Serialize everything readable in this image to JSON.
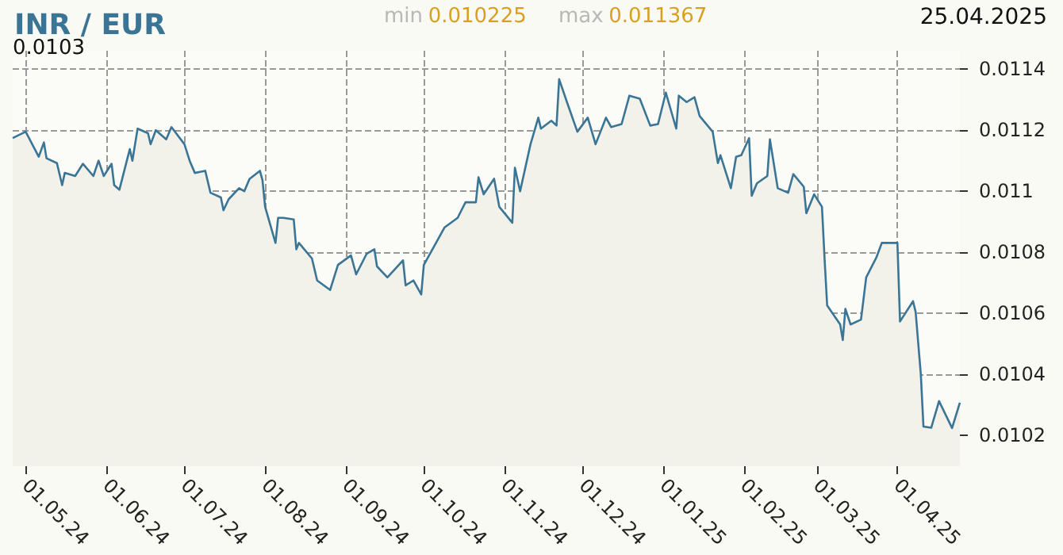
{
  "chart_data": {
    "type": "area",
    "title": "INR / EUR",
    "annotations": [
      "min 0.010225",
      "max 0.011367",
      "25.04.2025",
      "0.0103"
    ],
    "x": [
      "2024-04-26",
      "2024-05-01",
      "2024-05-06",
      "2024-05-08",
      "2024-05-09",
      "2024-05-13",
      "2024-05-15",
      "2024-05-16",
      "2024-05-20",
      "2024-05-23",
      "2024-05-27",
      "2024-05-29",
      "2024-05-31",
      "2024-06-03",
      "2024-06-04",
      "2024-06-06",
      "2024-06-10",
      "2024-06-11",
      "2024-06-13",
      "2024-06-17",
      "2024-06-18",
      "2024-06-20",
      "2024-06-24",
      "2024-06-26",
      "2024-07-01",
      "2024-07-03",
      "2024-07-05",
      "2024-07-09",
      "2024-07-11",
      "2024-07-15",
      "2024-07-16",
      "2024-07-18",
      "2024-07-22",
      "2024-07-24",
      "2024-07-26",
      "2024-07-30",
      "2024-07-31",
      "2024-08-01",
      "2024-08-05",
      "2024-08-06",
      "2024-08-08",
      "2024-08-12",
      "2024-08-13",
      "2024-08-14",
      "2024-08-19",
      "2024-08-21",
      "2024-08-26",
      "2024-08-29",
      "2024-09-03",
      "2024-09-05",
      "2024-09-09",
      "2024-09-12",
      "2024-09-13",
      "2024-09-17",
      "2024-09-23",
      "2024-09-24",
      "2024-09-27",
      "2024-09-30",
      "2024-10-01",
      "2024-10-09",
      "2024-10-14",
      "2024-10-17",
      "2024-10-21",
      "2024-10-22",
      "2024-10-24",
      "2024-10-28",
      "2024-10-30",
      "2024-11-04",
      "2024-11-05",
      "2024-11-07",
      "2024-11-11",
      "2024-11-14",
      "2024-11-15",
      "2024-11-19",
      "2024-11-21",
      "2024-11-22",
      "2024-11-25",
      "2024-11-29",
      "2024-12-03",
      "2024-12-06",
      "2024-12-10",
      "2024-12-12",
      "2024-12-16",
      "2024-12-19",
      "2024-12-23",
      "2024-12-27",
      "2024-12-30",
      "2025-01-02",
      "2025-01-06",
      "2025-01-07",
      "2025-01-10",
      "2025-01-13",
      "2025-01-15",
      "2025-01-20",
      "2025-01-22",
      "2025-01-23",
      "2025-01-27",
      "2025-01-29",
      "2025-01-31",
      "2025-02-03",
      "2025-02-04",
      "2025-02-06",
      "2025-02-10",
      "2025-02-11",
      "2025-02-14",
      "2025-02-18",
      "2025-02-20",
      "2025-02-24",
      "2025-02-25",
      "2025-02-28",
      "2025-03-03",
      "2025-03-04",
      "2025-03-05",
      "2025-03-10",
      "2025-03-11",
      "2025-03-12",
      "2025-03-14",
      "2025-03-18",
      "2025-03-20",
      "2025-03-24",
      "2025-03-26",
      "2025-03-28",
      "2025-04-01",
      "2025-04-02",
      "2025-04-07",
      "2025-04-08",
      "2025-04-10",
      "2025-04-11",
      "2025-04-14",
      "2025-04-17",
      "2025-04-22",
      "2025-04-25"
    ],
    "series": [
      {
        "color": "#3b7596",
        "values": [
          0.011174,
          0.011195,
          0.011113,
          0.01116,
          0.011108,
          0.011092,
          0.01102,
          0.01106,
          0.01105,
          0.01109,
          0.01105,
          0.0111,
          0.01105,
          0.01109,
          0.01102,
          0.011005,
          0.011138,
          0.0111,
          0.011205,
          0.01119,
          0.011154,
          0.0112,
          0.01117,
          0.01121,
          0.011154,
          0.0111,
          0.01106,
          0.011067,
          0.010995,
          0.01098,
          0.010938,
          0.010974,
          0.01101,
          0.011,
          0.01104,
          0.011067,
          0.011036,
          0.010949,
          0.010831,
          0.010913,
          0.010913,
          0.010908,
          0.01081,
          0.010831,
          0.01078,
          0.010708,
          0.010677,
          0.010759,
          0.01079,
          0.010728,
          0.010795,
          0.01081,
          0.010754,
          0.010718,
          0.010774,
          0.010692,
          0.010708,
          0.010662,
          0.010759,
          0.010882,
          0.010913,
          0.010964,
          0.010964,
          0.011046,
          0.01099,
          0.011041,
          0.010949,
          0.010897,
          0.011077,
          0.011,
          0.011154,
          0.011241,
          0.011205,
          0.011231,
          0.011215,
          0.011367,
          0.011292,
          0.011195,
          0.011241,
          0.011154,
          0.011241,
          0.01121,
          0.01122,
          0.011313,
          0.011303,
          0.011215,
          0.01122,
          0.011323,
          0.011205,
          0.011313,
          0.011292,
          0.011308,
          0.011246,
          0.011195,
          0.011092,
          0.011118,
          0.01101,
          0.011113,
          0.011118,
          0.011174,
          0.010985,
          0.011026,
          0.01105,
          0.01117,
          0.01101,
          0.010995,
          0.011056,
          0.011015,
          0.010928,
          0.01099,
          0.010949,
          0.01078,
          0.010626,
          0.010564,
          0.010513,
          0.010615,
          0.010564,
          0.01058,
          0.010718,
          0.010785,
          0.010831,
          0.010831,
          0.010831,
          0.010574,
          0.01064,
          0.010605,
          0.0104,
          0.01023,
          0.010226,
          0.010313,
          0.010225,
          0.010308
        ]
      }
    ],
    "xlim": [
      "2024-04-26",
      "2025-04-25"
    ],
    "xticks": [
      {
        "value": "2024-05-01",
        "label": "01.05.24"
      },
      {
        "value": "2024-06-01",
        "label": "01.06.24"
      },
      {
        "value": "2024-07-01",
        "label": "01.07.24"
      },
      {
        "value": "2024-08-01",
        "label": "01.08.24"
      },
      {
        "value": "2024-09-01",
        "label": "01.09.24"
      },
      {
        "value": "2024-10-01",
        "label": "01.10.24"
      },
      {
        "value": "2024-11-01",
        "label": "01.11.24"
      },
      {
        "value": "2024-12-01",
        "label": "01.12.24"
      },
      {
        "value": "2025-01-01",
        "label": "01.01.25"
      },
      {
        "value": "2025-02-01",
        "label": "01.02.25"
      },
      {
        "value": "2025-03-01",
        "label": "01.03.25"
      },
      {
        "value": "2025-04-01",
        "label": "01.04.25"
      }
    ],
    "ylim": [
      0.0101,
      0.01146
    ],
    "yticks": [
      0.0102,
      0.0104,
      0.0106,
      0.0108,
      0.011,
      0.0112,
      0.0114
    ],
    "grid": true
  }
}
